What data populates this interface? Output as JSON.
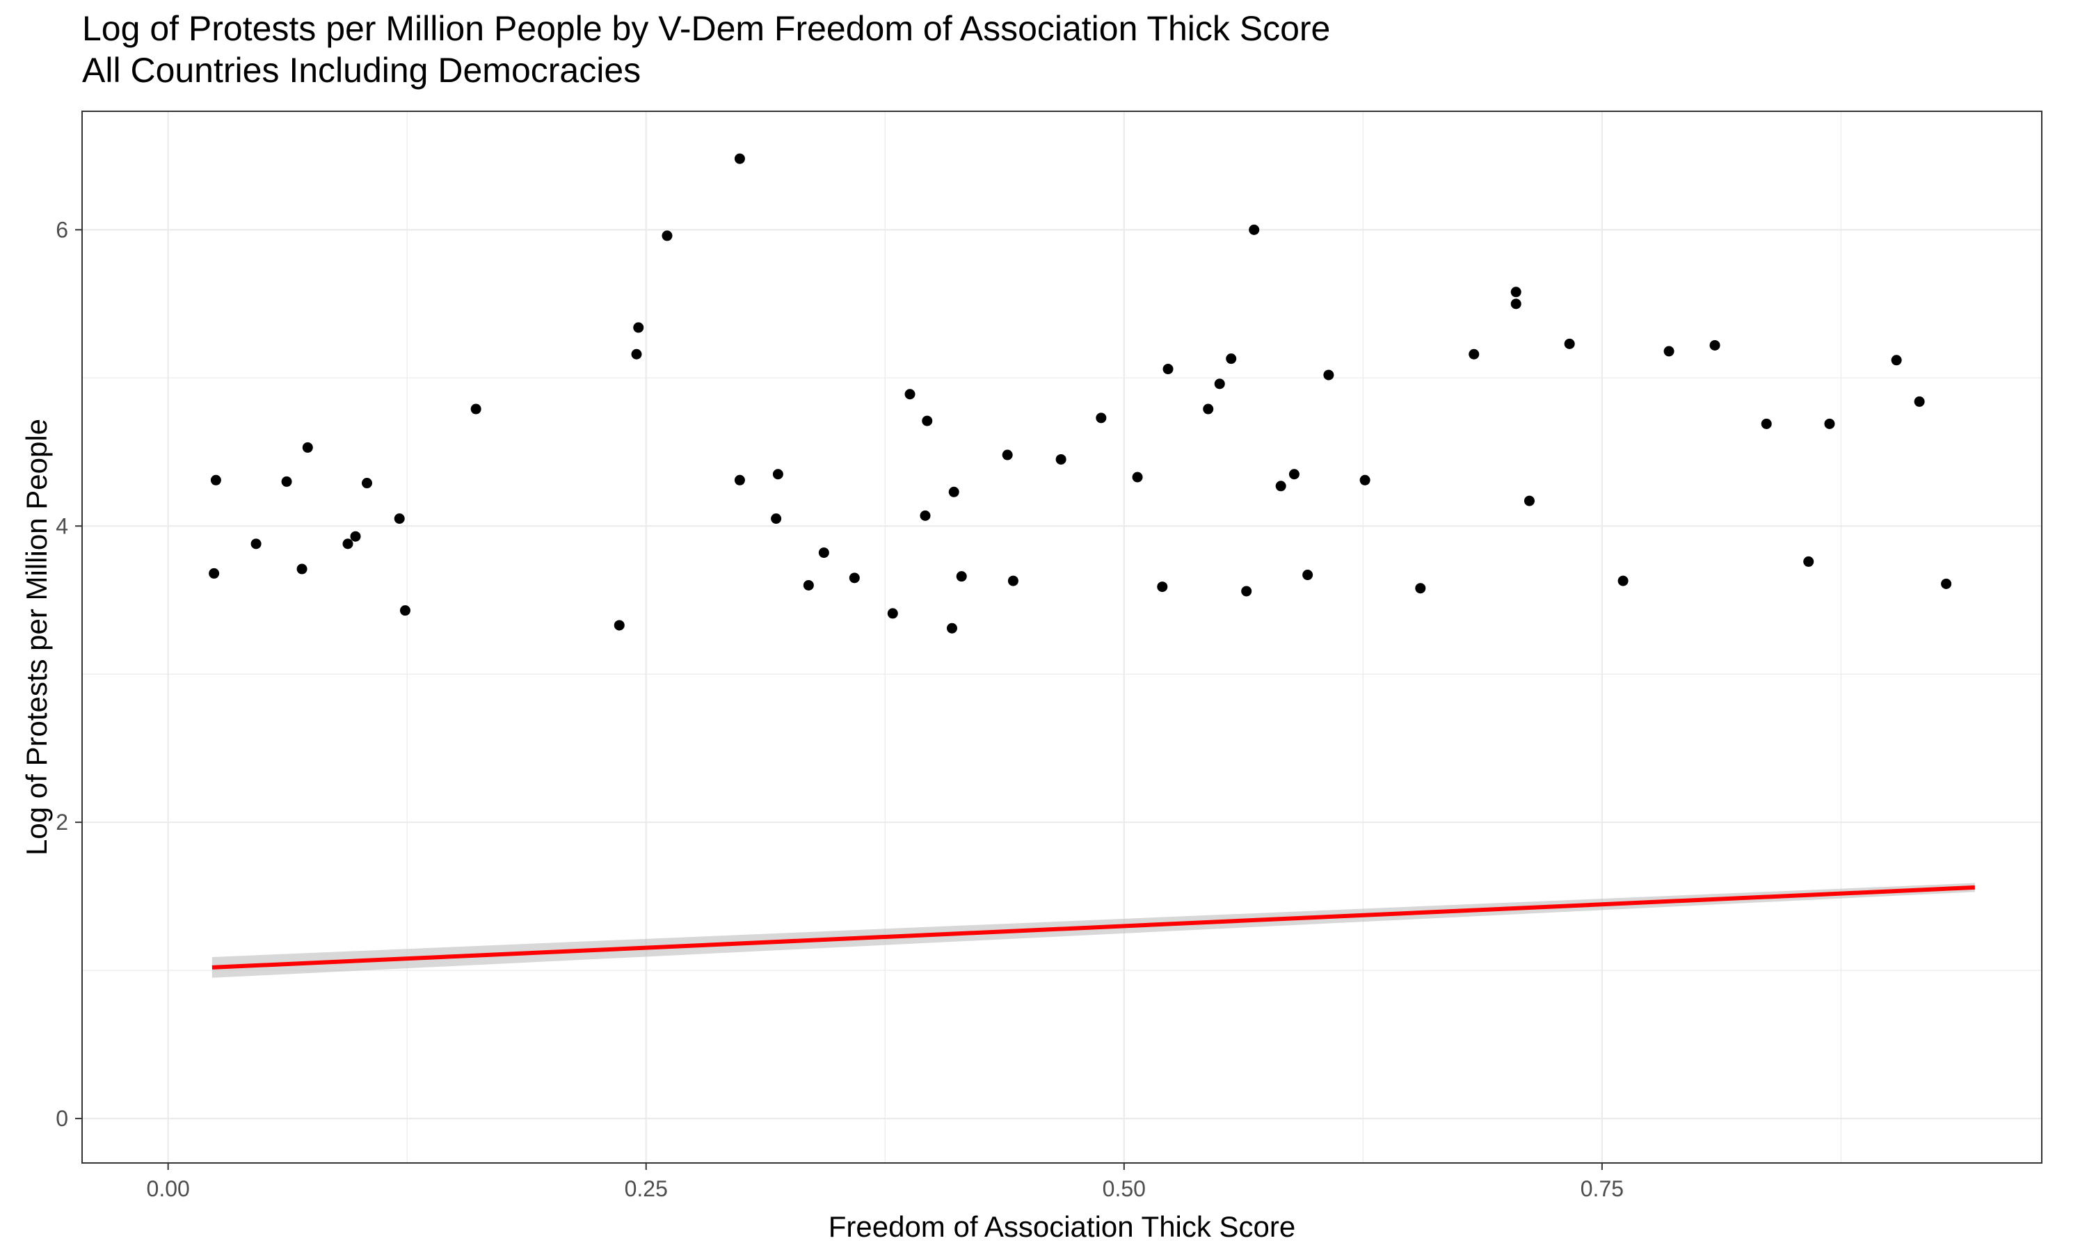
{
  "chart_data": {
    "type": "scatter",
    "title": "Log of Protests per Million People by V-Dem Freedom of Association Thick Score",
    "subtitle": "All Countries Including Democracies",
    "xlabel": "Freedom of Association Thick Score",
    "ylabel": "Log of Protests per Million People",
    "xlim": [
      -0.045,
      0.98
    ],
    "ylim": [
      -0.3,
      6.8
    ],
    "x_ticks": [
      0.0,
      0.25,
      0.5,
      0.75
    ],
    "x_tick_labels": [
      "0.00",
      "0.25",
      "0.50",
      "0.75"
    ],
    "y_ticks": [
      0,
      2,
      4,
      6
    ],
    "y_tick_labels": [
      "0",
      "2",
      "4",
      "6"
    ],
    "grid": true,
    "legend": "none",
    "colors": {
      "points": "#000000",
      "trend_line": "#ff0000",
      "confidence_band": "#bebebe",
      "grid": "#ebebeb",
      "panel_border": "#333333"
    },
    "fit_line": {
      "method": "linear",
      "x": [
        0.023,
        0.945
      ],
      "y": [
        1.02,
        1.56
      ]
    },
    "series": [
      {
        "points": [
          [
            0.299,
            6.48
          ],
          [
            0.261,
            5.96
          ],
          [
            0.568,
            6.0
          ],
          [
            0.246,
            5.34
          ],
          [
            0.245,
            5.16
          ],
          [
            0.705,
            5.58
          ],
          [
            0.705,
            5.5
          ],
          [
            0.683,
            5.16
          ],
          [
            0.733,
            5.23
          ],
          [
            0.809,
            5.22
          ],
          [
            0.785,
            5.18
          ],
          [
            0.904,
            5.12
          ],
          [
            0.916,
            4.84
          ],
          [
            0.161,
            4.79
          ],
          [
            0.388,
            4.89
          ],
          [
            0.523,
            5.06
          ],
          [
            0.55,
            4.96
          ],
          [
            0.556,
            5.13
          ],
          [
            0.607,
            5.02
          ],
          [
            0.073,
            4.53
          ],
          [
            0.025,
            4.31
          ],
          [
            0.062,
            4.3
          ],
          [
            0.104,
            4.29
          ],
          [
            0.121,
            4.05
          ],
          [
            0.299,
            4.31
          ],
          [
            0.319,
            4.35
          ],
          [
            0.318,
            4.05
          ],
          [
            0.397,
            4.71
          ],
          [
            0.396,
            4.07
          ],
          [
            0.411,
            4.23
          ],
          [
            0.439,
            4.48
          ],
          [
            0.467,
            4.45
          ],
          [
            0.488,
            4.73
          ],
          [
            0.507,
            4.33
          ],
          [
            0.544,
            4.79
          ],
          [
            0.582,
            4.27
          ],
          [
            0.589,
            4.35
          ],
          [
            0.626,
            4.31
          ],
          [
            0.712,
            4.17
          ],
          [
            0.836,
            4.69
          ],
          [
            0.869,
            4.69
          ],
          [
            0.024,
            3.68
          ],
          [
            0.046,
            3.88
          ],
          [
            0.07,
            3.71
          ],
          [
            0.094,
            3.88
          ],
          [
            0.098,
            3.93
          ],
          [
            0.124,
            3.43
          ],
          [
            0.236,
            3.33
          ],
          [
            0.335,
            3.6
          ],
          [
            0.343,
            3.82
          ],
          [
            0.359,
            3.65
          ],
          [
            0.379,
            3.41
          ],
          [
            0.41,
            3.31
          ],
          [
            0.415,
            3.66
          ],
          [
            0.442,
            3.63
          ],
          [
            0.52,
            3.59
          ],
          [
            0.564,
            3.56
          ],
          [
            0.596,
            3.67
          ],
          [
            0.655,
            3.58
          ],
          [
            0.761,
            3.63
          ],
          [
            0.858,
            3.76
          ],
          [
            0.93,
            3.61
          ]
        ]
      }
    ]
  }
}
